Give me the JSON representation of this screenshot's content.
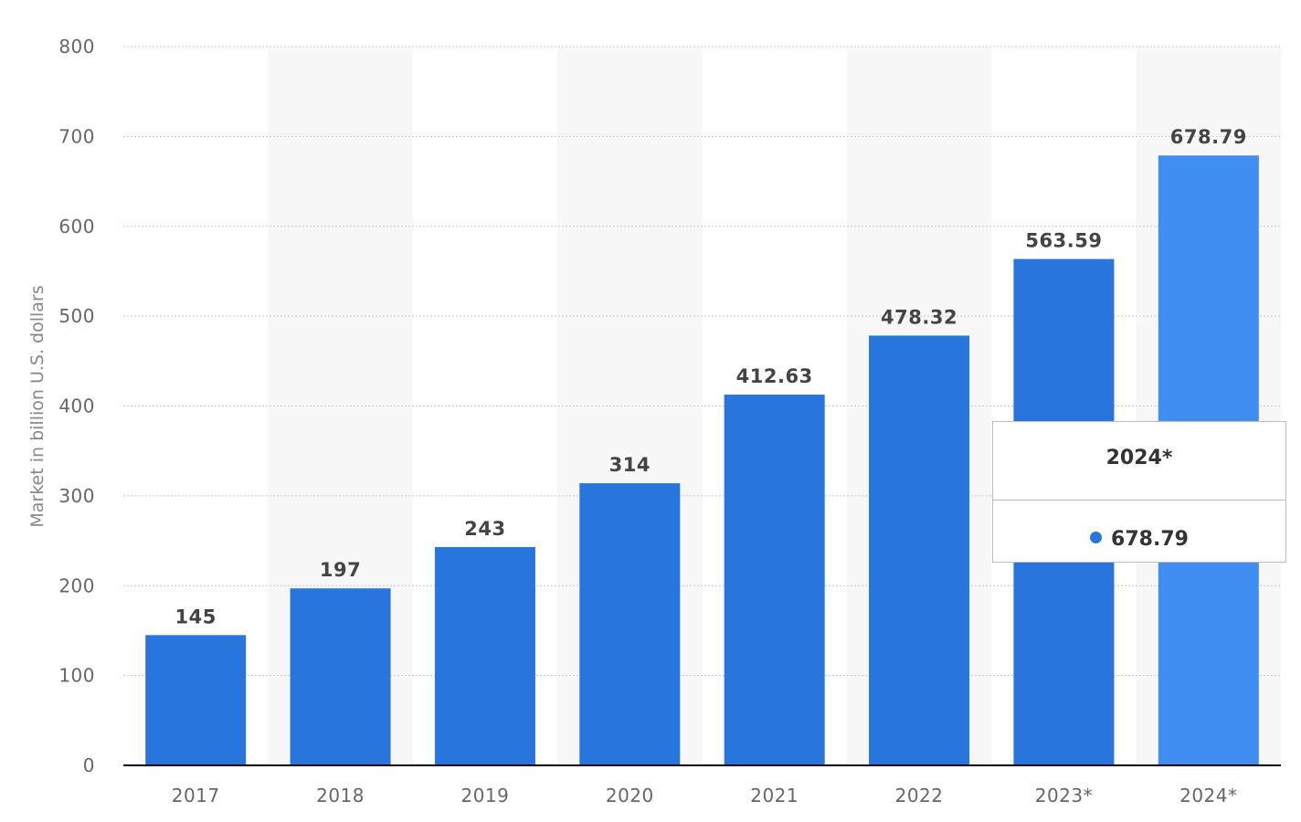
{
  "chart_data": {
    "type": "bar",
    "categories": [
      "2017",
      "2018",
      "2019",
      "2020",
      "2021",
      "2022",
      "2023*",
      "2024*"
    ],
    "values": [
      145,
      197,
      243,
      314,
      412.63,
      478.32,
      563.59,
      678.79
    ],
    "value_labels": [
      "145",
      "197",
      "243",
      "314",
      "412.63",
      "478.32",
      "563.59",
      "678.79"
    ],
    "title": "",
    "xlabel": "",
    "ylabel": "Market in billion U.S. dollars",
    "ylim": [
      0,
      800
    ],
    "yticks": [
      "0",
      "100",
      "200",
      "300",
      "400",
      "500",
      "600",
      "700",
      "800"
    ],
    "grid": true,
    "highlighted_category": "2024*",
    "colors": {
      "bar": "#2876dd",
      "bar_highlight": "#418ef2",
      "band": "#f7f7f7",
      "grid": "#c8c8c8",
      "axis": "#000000"
    }
  },
  "tooltip": {
    "title": "2024*",
    "value": "678.79",
    "dot_color": "#2876dd"
  }
}
